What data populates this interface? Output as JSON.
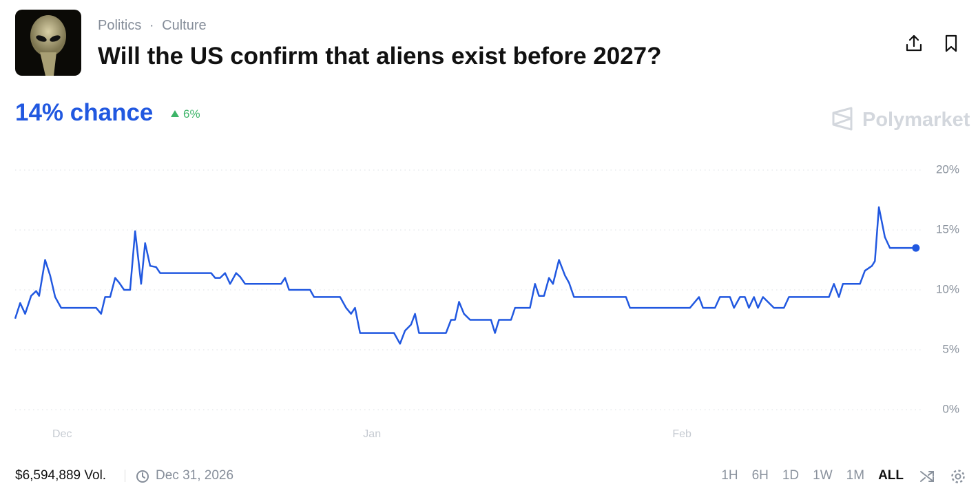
{
  "header": {
    "tags": [
      "Politics",
      "Culture"
    ],
    "title": "Will the US confirm that aliens exist before 2027?"
  },
  "headline": "14% chance",
  "change": "6%",
  "brand": "Polymarket",
  "footer": {
    "volume": "$6,594,889 Vol.",
    "end_date": "Dec 31, 2026",
    "ranges": [
      "1H",
      "6H",
      "1D",
      "1W",
      "1M",
      "ALL"
    ],
    "selected_range": "ALL"
  },
  "chart_data": {
    "type": "line",
    "x": [
      -4.7,
      -4.2,
      -3.7,
      -3.1,
      -2.6,
      -2.3,
      -1.7,
      -1.2,
      -0.7,
      -0.1,
      3.4,
      3.9,
      4.3,
      4.8,
      5.3,
      5.7,
      6.2,
      6.8,
      7.3,
      7.9,
      8.3,
      8.8,
      9.4,
      9.8,
      14.9,
      15.3,
      15.8,
      16.3,
      16.8,
      17.4,
      17.8,
      18.3,
      21.9,
      22.3,
      22.7,
      24.8,
      25.2,
      27.8,
      28.4,
      28.9,
      29.3,
      29.8,
      33.2,
      33.8,
      34.3,
      34.9,
      35.3,
      35.7,
      38.4,
      38.9,
      39.3,
      39.7,
      40.2,
      40.8,
      42.9,
      43.3,
      43.7,
      44.9,
      45.3,
      46.8,
      47.3,
      47.7,
      48.2,
      48.7,
      49.1,
      49.7,
      50.3,
      50.7,
      51.2,
      56.4,
      56.8,
      62.8,
      63.7,
      64.1,
      65.3,
      65.8,
      66.8,
      67.2,
      67.8,
      68.3,
      68.7,
      69.2,
      69.6,
      70.1,
      71.2,
      72.2,
      72.7,
      76.7,
      77.2,
      77.7,
      78.1,
      79.8,
      80.3,
      81.0,
      81.3,
      81.7,
      82.3,
      82.8,
      85.4
    ],
    "series": [
      {
        "color": "#2158e0",
        "values": [
          7.6,
          8.9,
          8.0,
          9.5,
          9.9,
          9.5,
          12.5,
          11.2,
          9.4,
          8.5,
          8.5,
          8.0,
          9.4,
          9.4,
          11.0,
          10.6,
          10.0,
          10.0,
          14.9,
          10.5,
          13.9,
          12.0,
          11.9,
          11.4,
          11.4,
          11.0,
          11.0,
          11.4,
          10.5,
          11.4,
          11.1,
          10.5,
          10.5,
          11.0,
          10.0,
          10.0,
          9.4,
          9.4,
          8.5,
          8.0,
          8.5,
          6.4,
          6.4,
          5.5,
          6.6,
          7.1,
          8.0,
          6.4,
          6.4,
          7.5,
          7.5,
          9.0,
          8.0,
          7.5,
          7.5,
          6.4,
          7.5,
          7.5,
          8.5,
          8.5,
          10.5,
          9.5,
          9.5,
          11.0,
          10.5,
          12.5,
          11.2,
          10.6,
          9.4,
          9.4,
          8.5,
          8.5,
          9.4,
          8.5,
          8.5,
          9.4,
          9.4,
          8.5,
          9.4,
          9.4,
          8.5,
          9.4,
          8.5,
          9.4,
          8.5,
          8.5,
          9.4,
          9.4,
          10.5,
          9.4,
          10.5,
          10.5,
          11.6,
          12.0,
          12.4,
          16.9,
          14.4,
          13.5,
          13.5
        ]
      }
    ],
    "xlim": [
      -4.7,
      86.1
    ],
    "xticks": [
      {
        "value": 0,
        "label": "Dec"
      },
      {
        "value": 31,
        "label": "Jan"
      },
      {
        "value": 62,
        "label": "Feb"
      }
    ],
    "ylim": [
      0,
      20
    ],
    "yticks": [
      {
        "value": 0,
        "label": "0%"
      },
      {
        "value": 5,
        "label": "5%"
      },
      {
        "value": 10,
        "label": "10%"
      },
      {
        "value": 15,
        "label": "15%"
      },
      {
        "value": 20,
        "label": "20%"
      }
    ],
    "grid": true
  }
}
